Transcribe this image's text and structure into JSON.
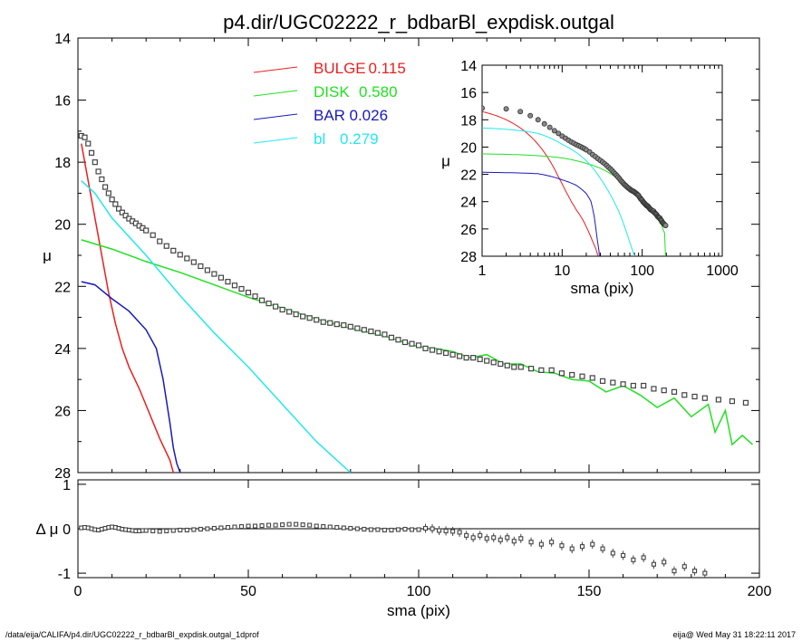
{
  "title": "p4.dir/UGC02222_r_bdbarBl_expdisk.outgal",
  "footer": {
    "left": "/data/eija/CALIFA/p4.dir/UGC02222_r_bdbarBl_expdisk.outgal_1dprof",
    "right": "eija@  Wed May 31 18:22:11 2017"
  },
  "colors": {
    "bulge": "#e8201e",
    "disk": "#22e022",
    "bar": "#1a1ab8",
    "bl": "#22e8ee",
    "data": "#555555"
  },
  "chart_data": [
    {
      "id": "main",
      "type": "line",
      "xlabel": "",
      "ylabel": "μ",
      "xlim": [
        0,
        200
      ],
      "ylim": [
        28,
        14
      ],
      "xticks": [
        "0",
        "50",
        "100",
        "150",
        "200"
      ],
      "yticks": [
        "14",
        "16",
        "18",
        "20",
        "22",
        "24",
        "26",
        "28"
      ],
      "legend": [
        {
          "name": "BULGE",
          "value": "0.115",
          "color": "#e8201e"
        },
        {
          "name": "DISK",
          "value": "0.580",
          "color": "#22e022"
        },
        {
          "name": "BAR",
          "value": "0.026",
          "color": "#1a1ab8"
        },
        {
          "name": "bl",
          "value": "0.279",
          "color": "#22e8ee"
        }
      ],
      "series": [
        {
          "name": "BULGE",
          "color": "#e8201e",
          "x": [
            1,
            3,
            5,
            7,
            9,
            11,
            13,
            15,
            18,
            21,
            24,
            27,
            28
          ],
          "y": [
            17.4,
            18.6,
            19.8,
            21.0,
            22.2,
            23.2,
            24.0,
            24.6,
            25.3,
            26.1,
            26.9,
            27.6,
            28.0
          ]
        },
        {
          "name": "DISK",
          "color": "#22e022",
          "x": [
            1,
            10,
            20,
            30,
            40,
            50,
            60,
            70,
            80,
            90,
            100,
            105,
            110,
            115,
            120,
            125,
            130,
            135,
            140,
            145,
            150,
            155,
            160,
            165,
            170,
            175,
            180,
            185,
            187,
            190,
            192,
            195,
            198
          ],
          "y": [
            20.5,
            20.8,
            21.2,
            21.55,
            21.95,
            22.35,
            22.7,
            23.05,
            23.35,
            23.6,
            23.95,
            24.0,
            24.1,
            24.3,
            24.2,
            24.5,
            24.5,
            24.75,
            24.8,
            25.0,
            25.05,
            25.4,
            25.2,
            25.5,
            25.9,
            25.6,
            26.2,
            25.8,
            26.7,
            26.0,
            27.1,
            26.8,
            27.1
          ]
        },
        {
          "name": "BAR",
          "color": "#1a1ab8",
          "x": [
            1,
            5,
            10,
            15,
            20,
            23,
            25,
            27,
            28,
            29,
            30
          ],
          "y": [
            21.85,
            21.95,
            22.4,
            22.8,
            23.4,
            24.0,
            25.0,
            26.4,
            27.2,
            27.7,
            28.0
          ]
        },
        {
          "name": "bl",
          "color": "#22e8ee",
          "x": [
            1,
            5,
            10,
            20,
            30,
            40,
            50,
            60,
            70,
            75,
            80
          ],
          "y": [
            18.6,
            19.0,
            19.8,
            21.0,
            22.3,
            23.5,
            24.6,
            25.8,
            27.0,
            27.5,
            28.0
          ]
        }
      ],
      "data_points": {
        "x": [
          1,
          2,
          3,
          4,
          5,
          6,
          7,
          8,
          9,
          10,
          11,
          12,
          13,
          14,
          15,
          16,
          17,
          18,
          19,
          20,
          22,
          24,
          26,
          28,
          30,
          32,
          34,
          36,
          38,
          40,
          42,
          44,
          46,
          48,
          50,
          52,
          54,
          56,
          58,
          60,
          62,
          64,
          66,
          68,
          70,
          72,
          74,
          76,
          78,
          80,
          82,
          84,
          86,
          88,
          90,
          92,
          94,
          96,
          98,
          100,
          102,
          104,
          106,
          108,
          110,
          112,
          114,
          116,
          118,
          120,
          122,
          124,
          126,
          128,
          130,
          133,
          136,
          139,
          142,
          145,
          148,
          151,
          154,
          157,
          160,
          163,
          166,
          169,
          172,
          175,
          178,
          181,
          184,
          188,
          192,
          196
        ],
        "y": [
          17.15,
          17.2,
          17.4,
          17.7,
          18.0,
          18.3,
          18.55,
          18.8,
          19.0,
          19.2,
          19.35,
          19.5,
          19.62,
          19.72,
          19.82,
          19.9,
          19.97,
          20.05,
          20.12,
          20.2,
          20.35,
          20.55,
          20.7,
          20.85,
          20.98,
          21.1,
          21.22,
          21.35,
          21.48,
          21.6,
          21.72,
          21.85,
          21.97,
          22.08,
          22.2,
          22.32,
          22.45,
          22.55,
          22.65,
          22.75,
          22.82,
          22.9,
          22.97,
          23.02,
          23.08,
          23.15,
          23.18,
          23.22,
          23.25,
          23.3,
          23.35,
          23.4,
          23.45,
          23.5,
          23.55,
          23.65,
          23.72,
          23.8,
          23.85,
          23.9,
          24.0,
          24.05,
          24.1,
          24.15,
          24.2,
          24.25,
          24.3,
          24.3,
          24.35,
          24.4,
          24.45,
          24.5,
          24.55,
          24.6,
          24.6,
          24.65,
          24.7,
          24.7,
          24.8,
          24.85,
          24.9,
          24.95,
          25.05,
          25.1,
          25.15,
          25.2,
          25.2,
          25.3,
          25.35,
          25.4,
          25.5,
          25.55,
          25.6,
          25.65,
          25.7,
          25.75
        ]
      }
    },
    {
      "id": "residual",
      "type": "scatter",
      "xlabel": "sma (pix)",
      "ylabel": "Δ μ",
      "xlim": [
        0,
        200
      ],
      "ylim": [
        -1.1,
        1.1
      ],
      "xticks": [
        "0",
        "50",
        "100",
        "150",
        "200"
      ],
      "yticks": [
        "1",
        "0",
        "-1"
      ],
      "x": [
        1,
        2,
        3,
        4,
        5,
        6,
        7,
        8,
        9,
        10,
        11,
        12,
        13,
        14,
        15,
        16,
        17,
        18,
        19,
        20,
        22,
        24,
        26,
        28,
        30,
        32,
        34,
        36,
        38,
        40,
        42,
        44,
        46,
        48,
        50,
        52,
        54,
        56,
        58,
        60,
        62,
        64,
        66,
        68,
        70,
        72,
        74,
        76,
        78,
        80,
        82,
        84,
        86,
        88,
        90,
        92,
        94,
        96,
        98,
        100,
        102,
        104,
        106,
        108,
        110,
        112,
        114,
        116,
        118,
        120,
        122,
        124,
        126,
        128,
        130,
        133,
        136,
        139,
        142,
        145,
        148,
        151,
        154,
        157,
        160,
        163,
        166,
        169,
        172,
        175,
        178,
        181,
        184
      ],
      "y": [
        0.02,
        0.03,
        0.02,
        0.0,
        -0.02,
        -0.03,
        -0.01,
        0.01,
        0.03,
        0.04,
        0.03,
        0.01,
        -0.01,
        -0.02,
        -0.03,
        -0.04,
        -0.05,
        -0.05,
        -0.04,
        -0.04,
        -0.05,
        -0.06,
        -0.05,
        -0.04,
        -0.03,
        -0.03,
        -0.02,
        -0.01,
        0.0,
        0.01,
        0.02,
        0.03,
        0.04,
        0.05,
        0.06,
        0.06,
        0.07,
        0.08,
        0.08,
        0.09,
        0.1,
        0.1,
        0.09,
        0.08,
        0.06,
        0.05,
        0.04,
        0.03,
        0.02,
        0.01,
        0.0,
        -0.01,
        -0.02,
        -0.02,
        -0.03,
        -0.03,
        -0.02,
        -0.01,
        -0.02,
        -0.02,
        0.01,
        0.0,
        -0.04,
        -0.05,
        -0.06,
        -0.08,
        -0.15,
        -0.2,
        -0.15,
        -0.22,
        -0.2,
        -0.25,
        -0.2,
        -0.28,
        -0.22,
        -0.3,
        -0.35,
        -0.3,
        -0.38,
        -0.45,
        -0.4,
        -0.35,
        -0.45,
        -0.55,
        -0.6,
        -0.7,
        -0.65,
        -0.8,
        -0.75,
        -0.95,
        -0.85,
        -0.95,
        -1.0
      ]
    },
    {
      "id": "inset",
      "type": "line",
      "xlabel": "sma (pix)",
      "ylabel": "μ",
      "xscale": "log",
      "xlim": [
        1,
        1000
      ],
      "ylim": [
        28,
        14
      ],
      "xticks": [
        "1",
        "10",
        "100",
        "1000"
      ],
      "yticks": [
        "14",
        "16",
        "18",
        "20",
        "22",
        "24",
        "26",
        "28"
      ]
    }
  ]
}
